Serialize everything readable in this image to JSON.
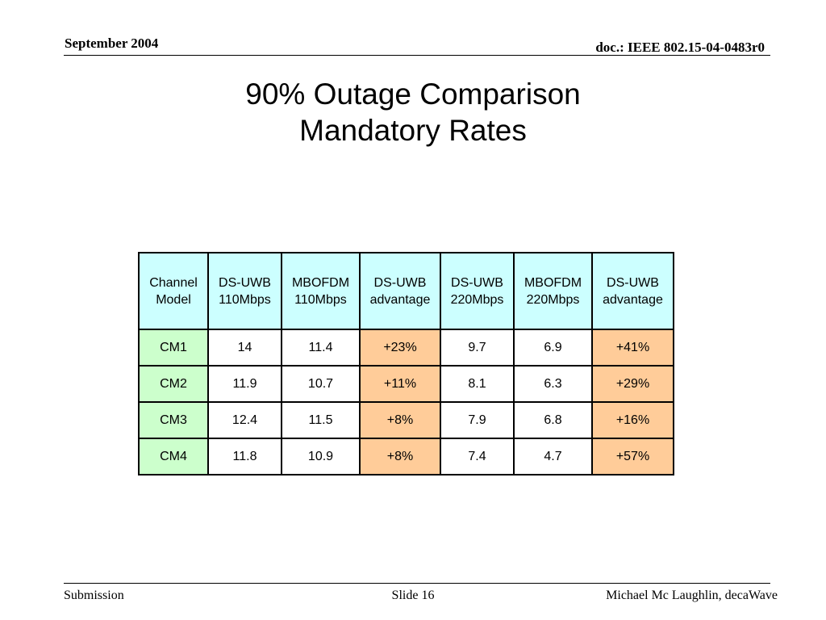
{
  "header": {
    "date": "September 2004",
    "doc": "doc.: IEEE 802.15-04-0483r0"
  },
  "title": {
    "line1": "90% Outage Comparison",
    "line2": "Mandatory Rates"
  },
  "table": {
    "headers": [
      [
        "Channel",
        "Model"
      ],
      [
        "DS-UWB",
        "110Mbps"
      ],
      [
        "MBOFDM",
        "110Mbps"
      ],
      [
        "DS-UWB",
        "advantage"
      ],
      [
        "DS-UWB",
        "220Mbps"
      ],
      [
        "MBOFDM",
        "220Mbps"
      ],
      [
        "DS-UWB",
        "advantage"
      ]
    ],
    "rows": [
      [
        "CM1",
        "14",
        "11.4",
        "+23%",
        "9.7",
        "6.9",
        "+41%"
      ],
      [
        "CM2",
        "11.9",
        "10.7",
        "+11%",
        "8.1",
        "6.3",
        "+29%"
      ],
      [
        "CM3",
        "12.4",
        "11.5",
        "+8%",
        "7.9",
        "6.8",
        "+16%"
      ],
      [
        "CM4",
        "11.8",
        "10.9",
        "+8%",
        "7.4",
        "4.7",
        "+57%"
      ]
    ]
  },
  "colors": {
    "header_bg": "#ccffff",
    "model_bg": "#ccffcc",
    "advantage_bg": "#ffcc99"
  },
  "footer": {
    "left": "Submission",
    "center": "Slide 16",
    "right": "Michael Mc Laughlin, decaWave"
  }
}
